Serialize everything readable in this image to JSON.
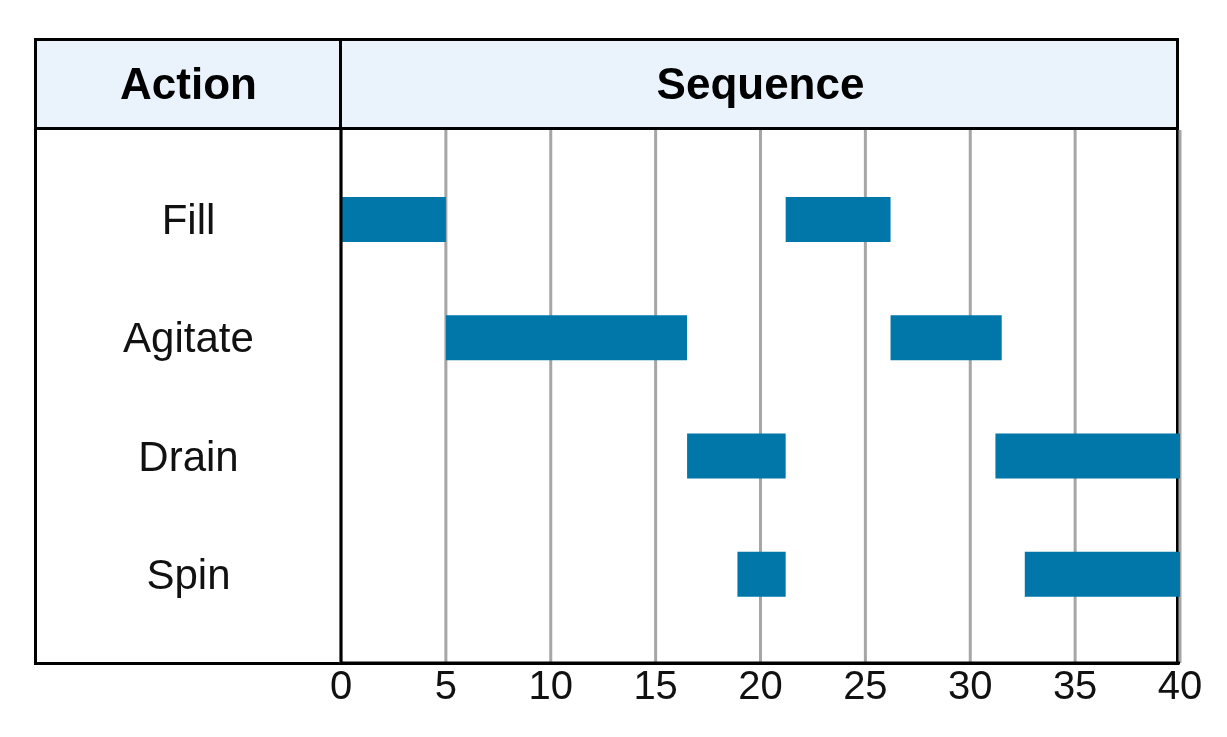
{
  "chart_data": {
    "type": "bar",
    "orientation": "horizontal",
    "title": "Sequence",
    "ylabel": "Action",
    "categories": [
      "Fill",
      "Agitate",
      "Drain",
      "Spin"
    ],
    "series": [
      {
        "color": "#0077a8",
        "base": [
          0,
          5,
          16.5,
          18.9
        ],
        "values": [
          5,
          11.5,
          4.7,
          2.3
        ]
      },
      {
        "color": "#0077a8",
        "base": [
          21.2,
          26.2,
          31.2,
          32.6
        ],
        "values": [
          5,
          5.3,
          8.8,
          7.4
        ]
      }
    ],
    "xlim": [
      0,
      40
    ],
    "xticks": [
      0,
      5,
      10,
      15,
      20,
      25,
      30,
      35,
      40
    ],
    "grid": "x"
  }
}
